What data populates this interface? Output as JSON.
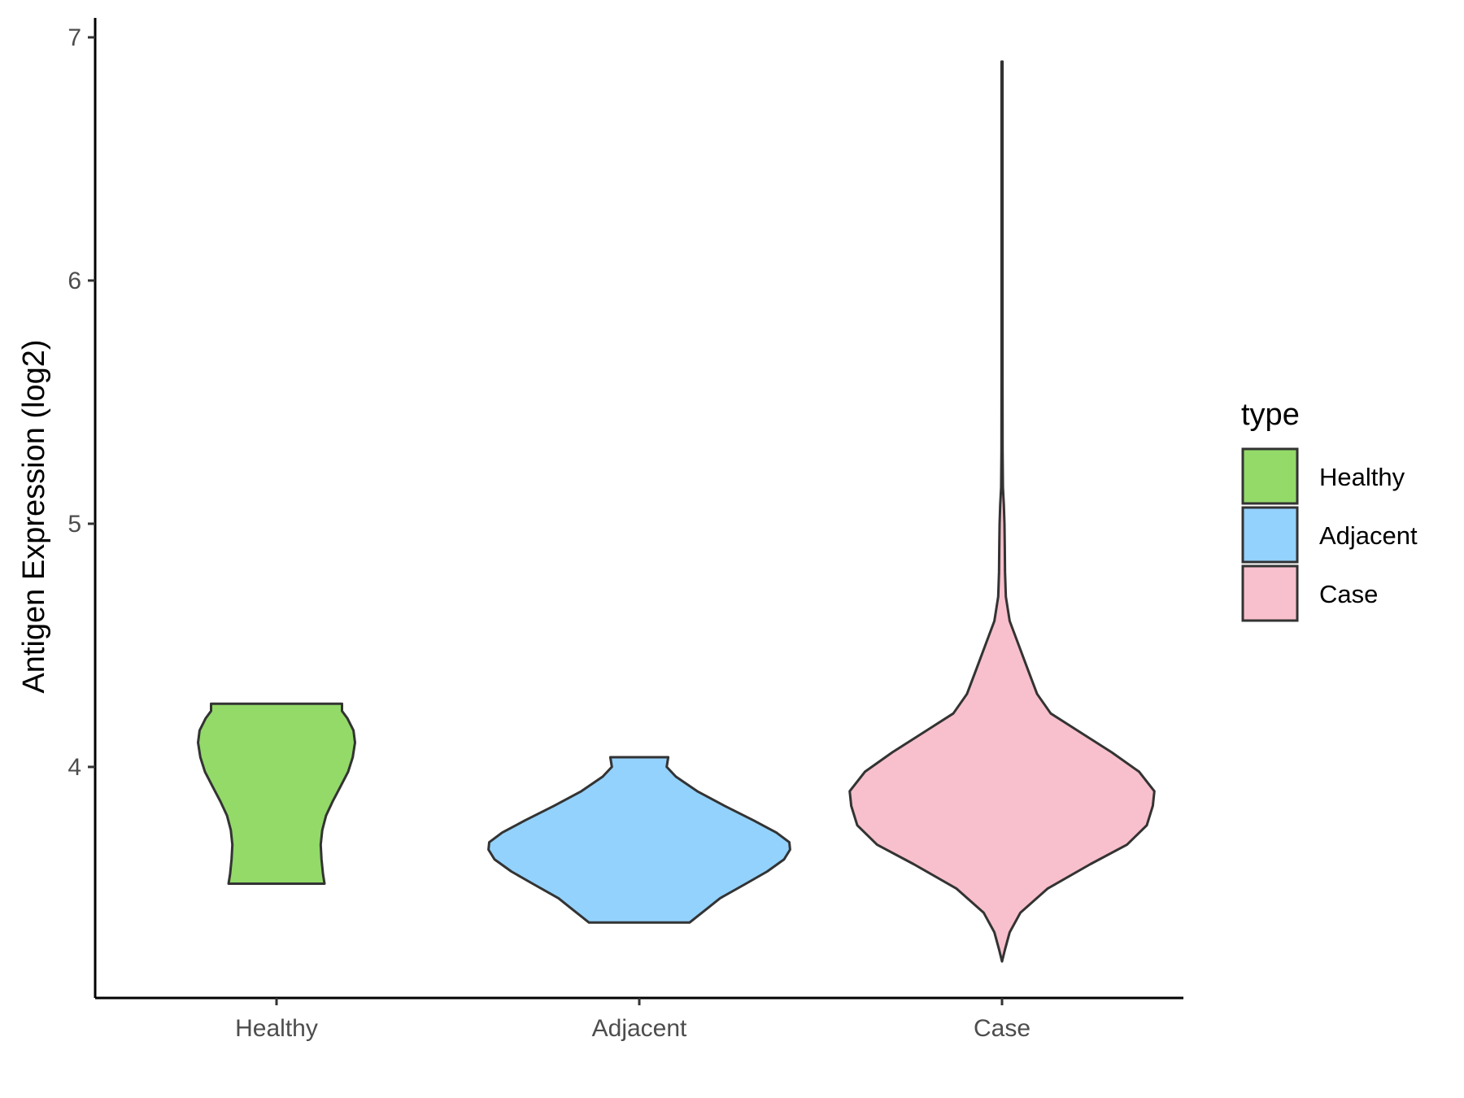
{
  "chart_data": {
    "type": "violin",
    "title": "",
    "xlabel": "",
    "ylabel": "Antigen Expression (log2)",
    "ylim": [
      3.05,
      7.08
    ],
    "yticks": [
      4,
      5,
      6,
      7
    ],
    "categories": [
      "Healthy",
      "Adjacent",
      "Case"
    ],
    "legend": {
      "title": "type",
      "position": "right",
      "entries": [
        "Healthy",
        "Adjacent",
        "Case"
      ]
    },
    "grid": false,
    "series": [
      {
        "name": "Healthy",
        "color": "#93DA69",
        "min": 3.52,
        "max": 4.26,
        "profile": [
          [
            3.52,
            0.315
          ],
          [
            3.56,
            0.305
          ],
          [
            3.62,
            0.295
          ],
          [
            3.68,
            0.29
          ],
          [
            3.74,
            0.3
          ],
          [
            3.8,
            0.325
          ],
          [
            3.86,
            0.37
          ],
          [
            3.92,
            0.42
          ],
          [
            3.98,
            0.47
          ],
          [
            4.04,
            0.5
          ],
          [
            4.1,
            0.515
          ],
          [
            4.15,
            0.505
          ],
          [
            4.2,
            0.465
          ],
          [
            4.23,
            0.43
          ],
          [
            4.26,
            0.43
          ]
        ]
      },
      {
        "name": "Adjacent",
        "color": "#93D2FD",
        "min": 3.36,
        "max": 4.04,
        "profile": [
          [
            3.36,
            0.33
          ],
          [
            3.39,
            0.39
          ],
          [
            3.42,
            0.45
          ],
          [
            3.46,
            0.53
          ],
          [
            3.52,
            0.7
          ],
          [
            3.57,
            0.84
          ],
          [
            3.62,
            0.95
          ],
          [
            3.66,
            0.99
          ],
          [
            3.69,
            0.985
          ],
          [
            3.73,
            0.9
          ],
          [
            3.78,
            0.75
          ],
          [
            3.84,
            0.56
          ],
          [
            3.9,
            0.38
          ],
          [
            3.96,
            0.24
          ],
          [
            4.0,
            0.18
          ],
          [
            4.04,
            0.19
          ]
        ]
      },
      {
        "name": "Case",
        "color": "#F8C0CC",
        "min": 3.2,
        "max": 6.9,
        "profile": [
          [
            3.2,
            0.0
          ],
          [
            3.25,
            0.02
          ],
          [
            3.32,
            0.05
          ],
          [
            3.4,
            0.12
          ],
          [
            3.5,
            0.3
          ],
          [
            3.6,
            0.58
          ],
          [
            3.68,
            0.82
          ],
          [
            3.76,
            0.95
          ],
          [
            3.84,
            0.99
          ],
          [
            3.9,
            1.0
          ],
          [
            3.98,
            0.9
          ],
          [
            4.06,
            0.72
          ],
          [
            4.14,
            0.52
          ],
          [
            4.22,
            0.32
          ],
          [
            4.3,
            0.23
          ],
          [
            4.4,
            0.17
          ],
          [
            4.5,
            0.11
          ],
          [
            4.6,
            0.05
          ],
          [
            4.7,
            0.025
          ],
          [
            4.8,
            0.02
          ],
          [
            4.9,
            0.018
          ],
          [
            5.0,
            0.016
          ],
          [
            5.08,
            0.012
          ],
          [
            5.15,
            0.006
          ],
          [
            5.3,
            0.004
          ],
          [
            5.6,
            0.003
          ],
          [
            6.0,
            0.003
          ],
          [
            6.5,
            0.003
          ],
          [
            6.9,
            0.003
          ]
        ]
      }
    ]
  }
}
